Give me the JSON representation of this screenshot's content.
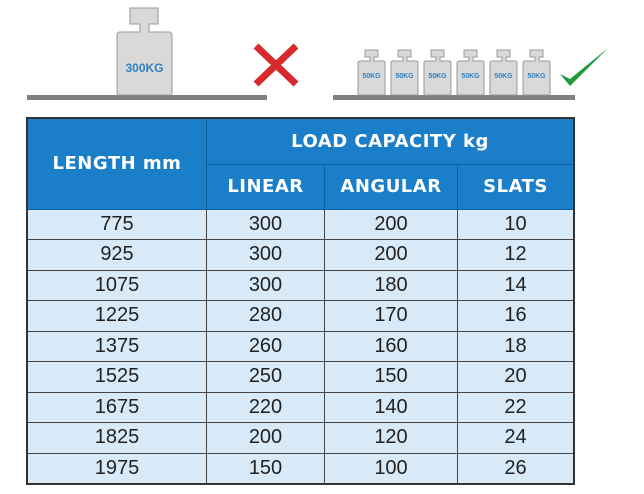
{
  "illustration": {
    "big_weight_label": "300KG",
    "small_weight_labels": [
      "50KG",
      "50KG",
      "50KG",
      "50KG",
      "50KG",
      "50KG"
    ],
    "wrong_icon": "cross-icon",
    "right_icon": "checkmark-icon",
    "colors": {
      "cross": "#d8282c",
      "check": "#1e9a3a",
      "weight": "#d9d9d9",
      "shelf": "#808080"
    }
  },
  "table": {
    "header_length": "LENGTH mm",
    "header_capacity": "LOAD CAPACITY kg",
    "subheaders": [
      "LINEAR",
      "ANGULAR",
      "SLATS"
    ],
    "rows": [
      [
        "775",
        "300",
        "200",
        "10"
      ],
      [
        "925",
        "300",
        "200",
        "12"
      ],
      [
        "1075",
        "300",
        "180",
        "14"
      ],
      [
        "1225",
        "280",
        "170",
        "16"
      ],
      [
        "1375",
        "260",
        "160",
        "18"
      ],
      [
        "1525",
        "250",
        "150",
        "20"
      ],
      [
        "1675",
        "220",
        "140",
        "22"
      ],
      [
        "1825",
        "200",
        "120",
        "24"
      ],
      [
        "1975",
        "150",
        "100",
        "26"
      ]
    ],
    "colors": {
      "header": "#1a7fc8",
      "cell": "#d8eaf8"
    }
  }
}
